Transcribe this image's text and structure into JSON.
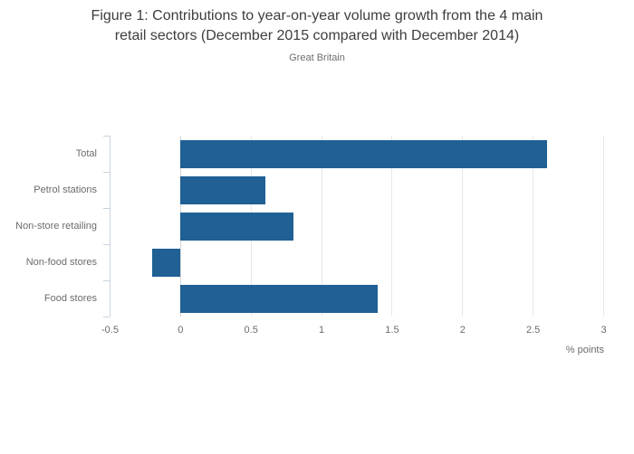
{
  "page": {
    "title_line1": "Figure 1: Contributions to year-on-year volume growth from the 4 main",
    "title_line2": "retail sectors (December 2015 compared with December 2014)",
    "subtitle": "Great Britain"
  },
  "chart_data": {
    "type": "bar",
    "orientation": "horizontal",
    "title": "Figure 1: Contributions to year-on-year volume growth from the 4 main retail sectors (December 2015 compared with December 2014)",
    "subtitle": "Great Britain",
    "categories": [
      "Total",
      "Petrol stations",
      "Non-store retailing",
      "Non-food stores",
      "Food stores"
    ],
    "values": [
      2.6,
      0.6,
      0.8,
      -0.2,
      1.4
    ],
    "xlabel": "% points",
    "ylabel": "",
    "xlim": [
      -0.5,
      3
    ],
    "xticks": [
      -0.5,
      0,
      0.5,
      1,
      1.5,
      2,
      2.5,
      3
    ],
    "xtick_labels": [
      "-0.5",
      "0",
      "0.5",
      "1",
      "1.5",
      "2",
      "2.5",
      "3"
    ],
    "grid": true,
    "legend": false,
    "bar_color": "#206095"
  },
  "colors": {
    "bar": "#206095",
    "axis_line": "#c9d4e2",
    "gridline": "#e8e8e8",
    "zeroline": "#d6d6d6",
    "title_text": "#3d3d3d",
    "label_text": "#6b6b6b"
  }
}
